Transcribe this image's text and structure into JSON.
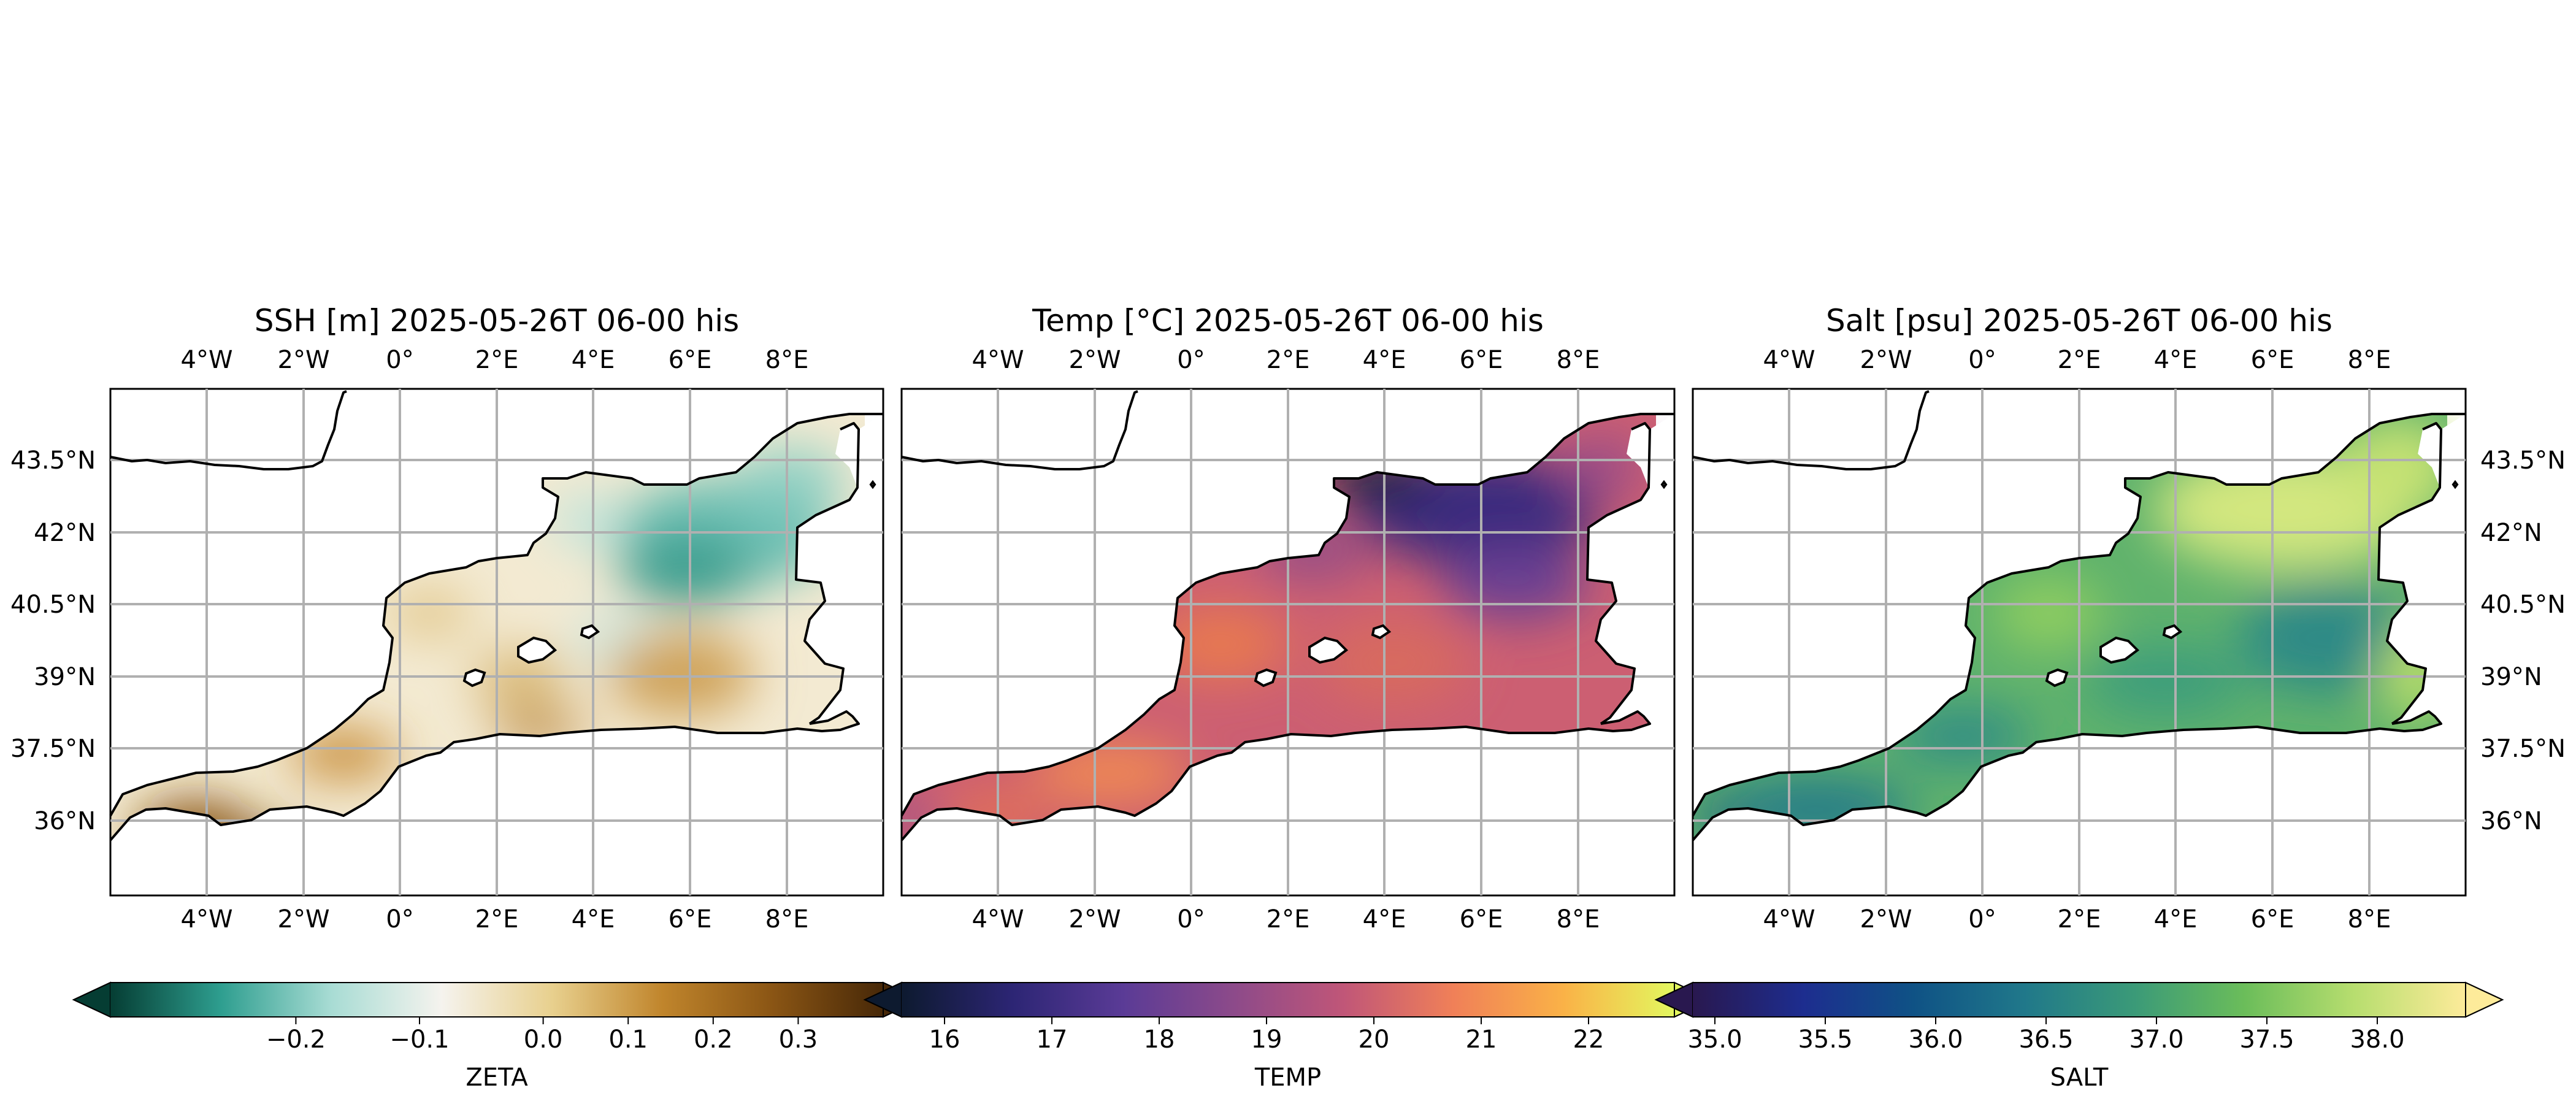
{
  "chart_data": [
    {
      "type": "heatmap",
      "title": "SSH [m] 2025-05-26T 06-00 his",
      "x_ticks": [
        "4°W",
        "2°W",
        "0°",
        "2°E",
        "4°E",
        "6°E",
        "8°E"
      ],
      "y_ticks": [
        "43.5°N",
        "42°N",
        "40.5°N",
        "39°N",
        "37.5°N",
        "36°N"
      ],
      "y_tick_side": "left",
      "grid": true,
      "colorbar": {
        "label": "ZETA",
        "range": [
          -0.35,
          0.4
        ],
        "ticks": [
          "−0.2",
          "−0.1",
          "0.0",
          "0.1",
          "0.2",
          "0.3"
        ],
        "tick_values": [
          -0.2,
          -0.1,
          0.0,
          0.1,
          0.2,
          0.3
        ],
        "scale": "two-slope (divergent, centered at 0)",
        "colors": [
          "#053d33",
          "#2e9e8f",
          "#a8dcd4",
          "#f5f3ee",
          "#e8d08e",
          "#c0852c",
          "#8a5514",
          "#472808"
        ],
        "extend": "both"
      }
    },
    {
      "type": "heatmap",
      "title": "Temp [°C] 2025-05-26T 06-00 his",
      "x_ticks": [
        "4°W",
        "2°W",
        "0°",
        "2°E",
        "4°E",
        "6°E",
        "8°E"
      ],
      "y_ticks": [],
      "grid": true,
      "colorbar": {
        "label": "TEMP",
        "range": [
          15.6,
          22.8
        ],
        "ticks": [
          "16",
          "17",
          "18",
          "19",
          "20",
          "21",
          "22"
        ],
        "tick_values": [
          16,
          17,
          18,
          19,
          20,
          21,
          22
        ],
        "colors": [
          "#0d1a2f",
          "#2c2574",
          "#5a3b96",
          "#8c4a8a",
          "#c05678",
          "#f08058",
          "#fab247",
          "#e3f75f"
        ],
        "extend": "both"
      }
    },
    {
      "type": "heatmap",
      "title": "Salt [psu] 2025-05-26T 06-00 his",
      "x_ticks": [
        "4°W",
        "2°W",
        "0°",
        "2°E",
        "4°E",
        "6°E",
        "8°E"
      ],
      "y_ticks": [
        "43.5°N",
        "42°N",
        "40.5°N",
        "39°N",
        "37.5°N",
        "36°N"
      ],
      "y_tick_side": "right",
      "grid": true,
      "colorbar": {
        "label": "SALT",
        "range": [
          34.9,
          38.4
        ],
        "ticks": [
          "35.0",
          "35.5",
          "36.0",
          "36.5",
          "37.0",
          "37.5",
          "38.0"
        ],
        "tick_values": [
          35.0,
          35.5,
          36.0,
          36.5,
          37.0,
          37.5,
          38.0
        ],
        "colors": [
          "#29184f",
          "#1d2d8f",
          "#0f5285",
          "#20788a",
          "#3b9a78",
          "#6bbd5a",
          "#b8de6f",
          "#fdeb9a"
        ],
        "extend": "both"
      }
    }
  ]
}
